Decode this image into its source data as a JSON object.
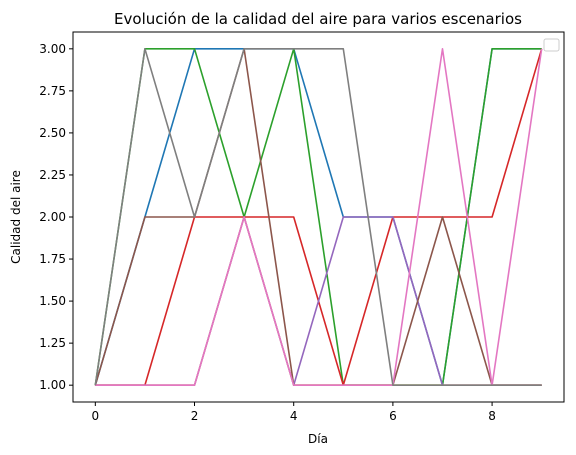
{
  "chart_data": {
    "type": "line",
    "title": "Evolución de la calidad del aire para varios escenarios",
    "xlabel": "Día",
    "ylabel": "Calidad del aire",
    "xlim": [
      -0.45,
      9.45
    ],
    "ylim": [
      0.9,
      3.1
    ],
    "xticks": [
      0,
      2,
      4,
      6,
      8
    ],
    "yticks": [
      1.0,
      1.25,
      1.5,
      1.75,
      2.0,
      2.25,
      2.5,
      2.75,
      3.0
    ],
    "ytick_labels": [
      "1.00",
      "1.25",
      "1.50",
      "1.75",
      "2.00",
      "2.25",
      "2.50",
      "2.75",
      "3.00"
    ],
    "grid": false,
    "legend": "top-right (empty)",
    "x": [
      0,
      1,
      2,
      3,
      4,
      5,
      6,
      7,
      8,
      9
    ],
    "series": [
      {
        "color": "#1f77b4",
        "values": [
          1,
          2,
          3,
          3,
          3,
          2,
          2,
          1,
          3,
          3
        ]
      },
      {
        "color": "#ff7f0e",
        "values": [
          1,
          1,
          1,
          2,
          1,
          1,
          1,
          1,
          1,
          1
        ]
      },
      {
        "color": "#2ca02c",
        "values": [
          1,
          3,
          3,
          2,
          3,
          1,
          1,
          1,
          3,
          3
        ]
      },
      {
        "color": "#d62728",
        "values": [
          1,
          1,
          2,
          2,
          2,
          1,
          2,
          2,
          2,
          3
        ]
      },
      {
        "color": "#9467bd",
        "values": [
          1,
          1,
          1,
          2,
          1,
          2,
          2,
          1,
          1,
          1
        ]
      },
      {
        "color": "#8c564b",
        "values": [
          1,
          2,
          2,
          3,
          1,
          1,
          1,
          2,
          1,
          1
        ]
      },
      {
        "color": "#e377c2",
        "values": [
          1,
          1,
          1,
          2,
          1,
          1,
          1,
          3,
          1,
          3
        ]
      },
      {
        "color": "#7f7f7f",
        "values": [
          1,
          3,
          2,
          3,
          3,
          3,
          1,
          1,
          1,
          1
        ]
      }
    ]
  }
}
